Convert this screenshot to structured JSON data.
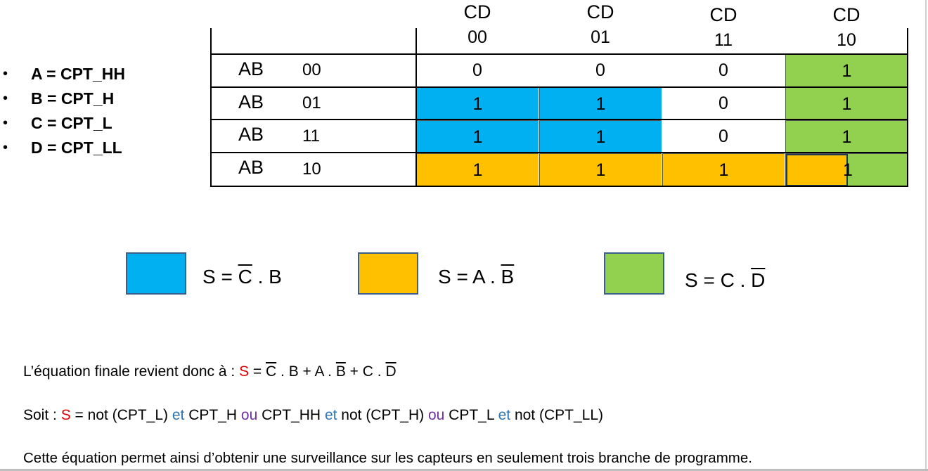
{
  "variables": [
    {
      "bullet": "•",
      "text": "A = CPT_HH"
    },
    {
      "bullet": "•",
      "text": "B = CPT_H"
    },
    {
      "bullet": "•",
      "text": "C = CPT_L"
    },
    {
      "bullet": "•",
      "text": "D = CPT_LL"
    }
  ],
  "kmap": {
    "col_var": "CD",
    "col_codes": [
      "00",
      "01",
      "11",
      "10"
    ],
    "row_var": "AB",
    "row_codes": [
      "00",
      "01",
      "11",
      "10"
    ],
    "cells": [
      [
        "0",
        "0",
        "0",
        "1"
      ],
      [
        "1",
        "1",
        "0",
        "1"
      ],
      [
        "1",
        "1",
        "0",
        "1"
      ],
      [
        "1",
        "1",
        "1",
        "1"
      ]
    ]
  },
  "colors": {
    "blue": "#00b0f0",
    "orange": "#ffc000",
    "green": "#92d050"
  },
  "legend": [
    {
      "color": "blue",
      "prefix": "S = ",
      "bar": "C",
      "mid": " . ",
      "plain": "B"
    },
    {
      "color": "orange",
      "prefix": "S = A . ",
      "bar": "B"
    },
    {
      "color": "green",
      "prefix": "S = C . ",
      "bar": "D"
    }
  ],
  "equation": {
    "intro": "L’équation finale revient donc à : ",
    "s": "S",
    "eq": " = ",
    "c": "C",
    "p1": " . B + A . ",
    "b": "B",
    "p2": " + C . ",
    "d": "D"
  },
  "soit": {
    "label": "Soit : ",
    "s": "S",
    "t1": " = not (CPT_L) ",
    "et1": "et",
    "t2": " CPT_H ",
    "ou1": "ou",
    "t3": " CPT_HH ",
    "et2": "et",
    "t4": " not (CPT_H) ",
    "ou2": "ou",
    "t5": " CPT_L ",
    "et3": "et",
    "t6": " not (CPT_LL)"
  },
  "conclusion": "Cette équation permet ainsi d’obtenir une surveillance sur les capteurs en seulement trois branche de programme."
}
